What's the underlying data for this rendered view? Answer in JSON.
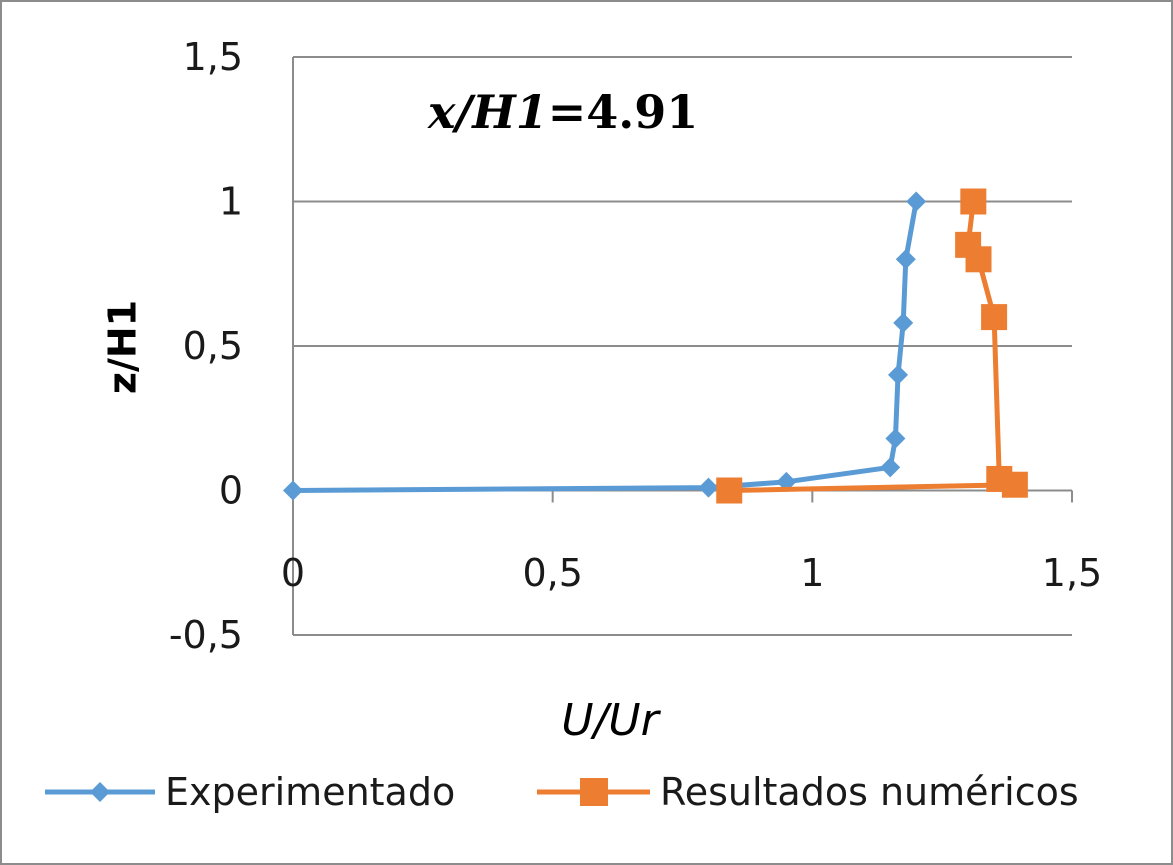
{
  "chart_data": {
    "type": "line",
    "annotation": {
      "name": "x/H1",
      "value": "=4.91"
    },
    "xlabel": "U/Ur",
    "ylabel": "z/H1",
    "xlim": [
      0,
      1.5
    ],
    "ylim": [
      -0.5,
      1.5
    ],
    "x_ticks": [
      "0",
      "0,5",
      "1",
      "1,5"
    ],
    "y_ticks": [
      "-0,5",
      "0",
      "0,5",
      "1",
      "1,5"
    ],
    "grid": "horizontal",
    "legend_position": "bottom",
    "series": [
      {
        "name": "Experimentado",
        "color": "#5b9bd5",
        "marker": "diamond",
        "x": [
          0.0,
          0.8,
          0.95,
          1.15,
          1.16,
          1.165,
          1.175,
          1.18,
          1.2
        ],
        "y": [
          0.0,
          0.01,
          0.03,
          0.08,
          0.18,
          0.4,
          0.58,
          0.8,
          1.0
        ]
      },
      {
        "name": "Resultados numéricos",
        "color": "#ed7d31",
        "marker": "square",
        "x": [
          0.84,
          1.39,
          1.36,
          1.35,
          1.32,
          1.3,
          1.31
        ],
        "y": [
          0.0,
          0.02,
          0.04,
          0.6,
          0.8,
          0.85,
          1.0
        ]
      }
    ]
  }
}
